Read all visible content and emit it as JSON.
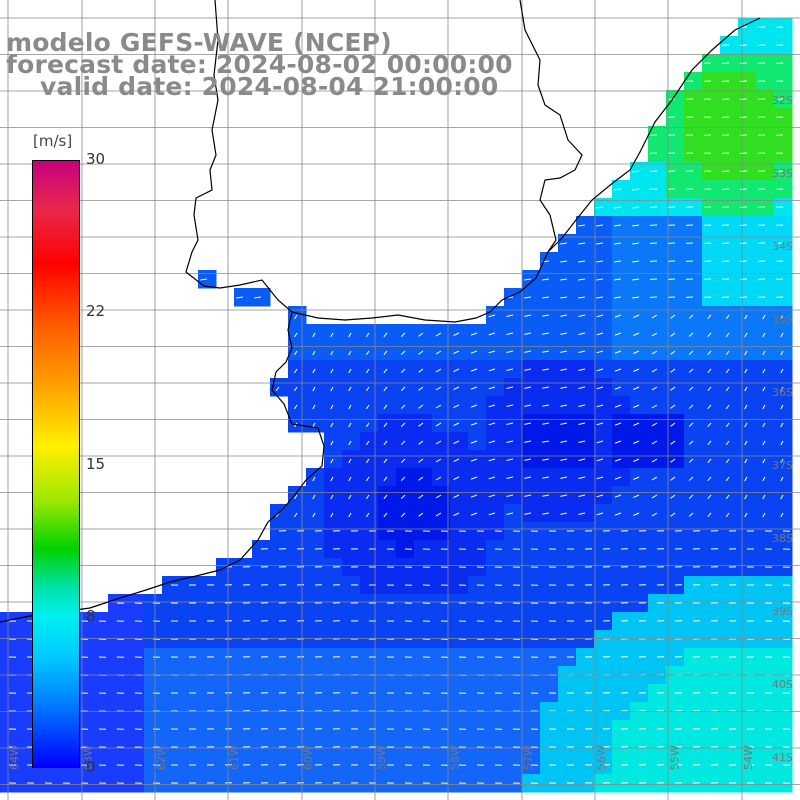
{
  "title": {
    "line1": "modelo GEFS-WAVE (NCEP)",
    "line2": "forecast date: 2024-08-02 00:00:00",
    "line3": "valid date: 2024-08-04 21:00:00"
  },
  "colorbar": {
    "unit": "[m/s]",
    "ticks": [
      "30",
      "22",
      "15",
      "8",
      "0"
    ],
    "colors": [
      "#c8007e",
      "#ff0000",
      "#ffa000",
      "#fff000",
      "#00d200",
      "#00f0f0",
      "#0078ff",
      "#0000ff"
    ]
  },
  "lat_labels": [
    "32S",
    "33S",
    "34S",
    "35S",
    "36S",
    "37S",
    "38S",
    "39S",
    "40S",
    "41S"
  ],
  "lon_labels": [
    "64W",
    "63W",
    "62W",
    "61W",
    "60W",
    "59W",
    "58W",
    "57W",
    "56W",
    "55W",
    "54W"
  ],
  "colors": {
    "ocean_blue": "#0a2cf0",
    "cyan_region": "#00e8f0",
    "green_region": "#18e010",
    "land": "#ffffff",
    "coastline": "#000000",
    "grid": "#888888",
    "arrows": "#ffffff"
  }
}
